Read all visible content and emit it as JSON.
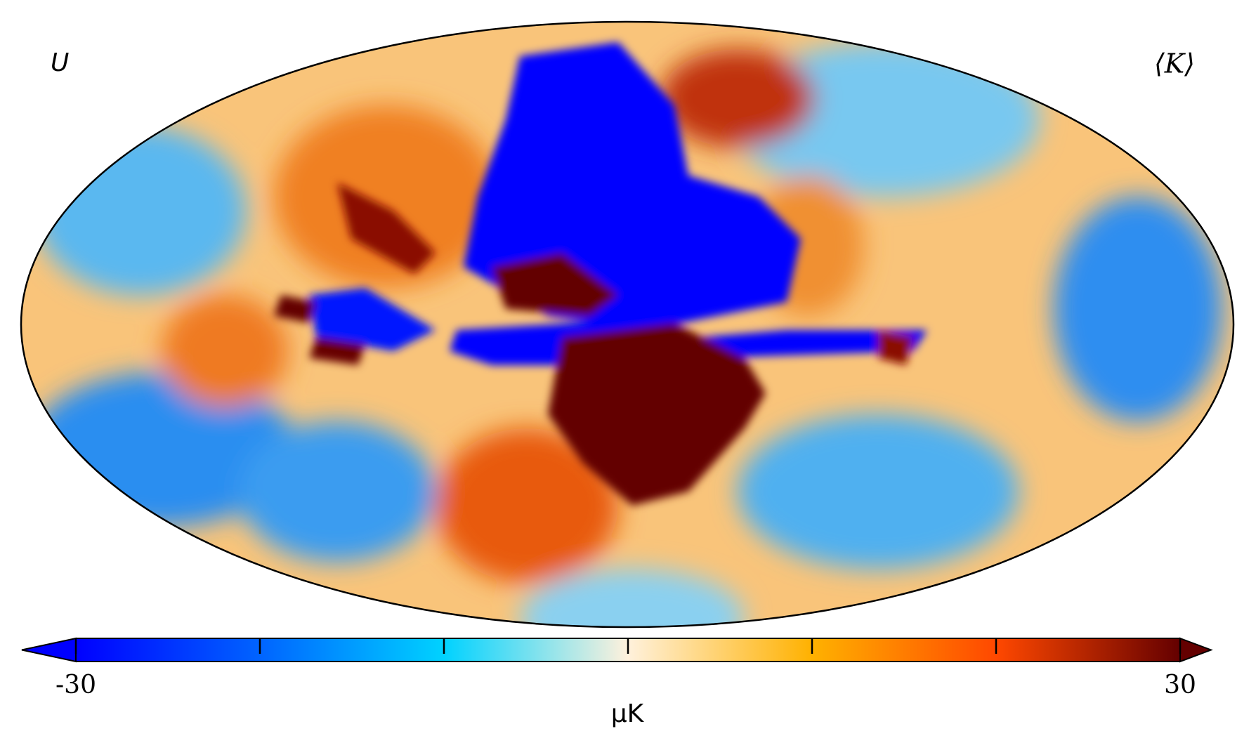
{
  "chart_data": {
    "type": "mollweide",
    "map_label": "U",
    "corner_label": "⟨K⟩",
    "colorbar_label": "μK",
    "colorbar_lim": [
      -30,
      30
    ],
    "colorbar_ticks": [
      -30,
      30
    ],
    "colorbar_minor_ticks": [
      -20,
      -10,
      0,
      10,
      20
    ],
    "colormap": [
      "#0000ff",
      "#0064ff",
      "#00d2ff",
      "#fff1dc",
      "#ffb100",
      "#ff4800",
      "#640000"
    ]
  }
}
